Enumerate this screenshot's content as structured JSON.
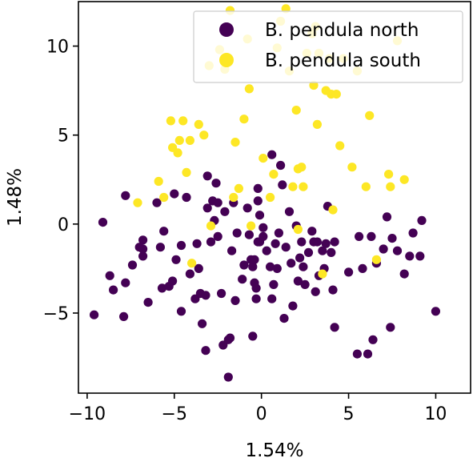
{
  "chart_data": {
    "type": "scatter",
    "xlabel": "1.54%",
    "ylabel": "1.48%",
    "xlim": [
      -10.5,
      12
    ],
    "ylim": [
      -9.5,
      12.5
    ],
    "xticks": [
      -10,
      -5,
      0,
      5,
      10
    ],
    "yticks": [
      -5,
      0,
      5,
      10
    ],
    "grid": false,
    "legend_position": "top-right",
    "series": [
      {
        "name": "B. pendula north",
        "color": "#440154",
        "points": [
          [
            -9.6,
            -5.1
          ],
          [
            -9.1,
            0.1
          ],
          [
            -8.7,
            -2.9
          ],
          [
            -8.5,
            -3.7
          ],
          [
            -7.9,
            -5.2
          ],
          [
            -7.8,
            1.6
          ],
          [
            -7.8,
            -3.3
          ],
          [
            -7.4,
            -2.3
          ],
          [
            -7.0,
            -1.3
          ],
          [
            -6.8,
            -0.9
          ],
          [
            -6.8,
            -1.8
          ],
          [
            -6.5,
            -4.4
          ],
          [
            -6.0,
            1.2
          ],
          [
            -5.8,
            -1.3
          ],
          [
            -5.7,
            -3.6
          ],
          [
            -5.6,
            -0.4
          ],
          [
            -5.3,
            -3.5
          ],
          [
            -5.1,
            -3.2
          ],
          [
            -5.0,
            1.7
          ],
          [
            -4.9,
            -2.0
          ],
          [
            -4.6,
            -1.2
          ],
          [
            -4.6,
            -4.9
          ],
          [
            -4.3,
            1.5
          ],
          [
            -4.1,
            -2.8
          ],
          [
            -3.8,
            -4.2
          ],
          [
            -3.7,
            -1.1
          ],
          [
            -3.6,
            -2.5
          ],
          [
            -3.5,
            -3.9
          ],
          [
            -3.4,
            -5.6
          ],
          [
            -3.2,
            -4.0
          ],
          [
            -3.1,
            2.7
          ],
          [
            -3.1,
            0.9
          ],
          [
            -3.2,
            -7.1
          ],
          [
            -2.9,
            -1.0
          ],
          [
            -2.8,
            1.3
          ],
          [
            -2.7,
            0.2
          ],
          [
            -2.5,
            1.2
          ],
          [
            -2.5,
            -0.7
          ],
          [
            -2.3,
            -3.9
          ],
          [
            -2.2,
            -6.8
          ],
          [
            -2.1,
            0.7
          ],
          [
            -1.9,
            -8.6
          ],
          [
            -1.8,
            -6.4
          ],
          [
            -1.7,
            -1.5
          ],
          [
            -1.6,
            1.2
          ],
          [
            -1.5,
            -4.3
          ],
          [
            -1.4,
            -0.5
          ],
          [
            -1.1,
            -3.1
          ],
          [
            -1.0,
            -2.3
          ],
          [
            -0.8,
            0.9
          ],
          [
            -0.7,
            -0.6
          ],
          [
            -0.6,
            -2.0
          ],
          [
            -0.5,
            -6.3
          ],
          [
            -0.5,
            -2.4
          ],
          [
            -0.4,
            -3.3
          ],
          [
            -0.3,
            -3.6
          ],
          [
            -0.2,
            1.3
          ],
          [
            -0.2,
            -1.0
          ],
          [
            -0.1,
            -1.0
          ],
          [
            0.1,
            -0.2
          ],
          [
            -0.1,
            0.5
          ],
          [
            -0.2,
            2.0
          ],
          [
            -0.4,
            -2.0
          ],
          [
            -0.3,
            -4.2
          ],
          [
            0.1,
            -0.7
          ],
          [
            0.3,
            -1.5
          ],
          [
            0.5,
            -2.4
          ],
          [
            0.6,
            3.9
          ],
          [
            0.6,
            -4.2
          ],
          [
            0.8,
            -1.1
          ],
          [
            0.9,
            -2.5
          ],
          [
            1.0,
            -0.5
          ],
          [
            1.1,
            3.3
          ],
          [
            1.2,
            2.2
          ],
          [
            1.3,
            -5.3
          ],
          [
            1.4,
            -1.3
          ],
          [
            1.6,
            0.7
          ],
          [
            1.7,
            -2.2
          ],
          [
            2.0,
            -0.1
          ],
          [
            2.1,
            -3.2
          ],
          [
            2.2,
            -1.9
          ],
          [
            2.3,
            -1.0
          ],
          [
            2.4,
            -2.4
          ],
          [
            2.5,
            -3.4
          ],
          [
            2.7,
            -1.6
          ],
          [
            2.9,
            -0.4
          ],
          [
            3.0,
            -1.0
          ],
          [
            3.1,
            -3.8
          ],
          [
            3.2,
            -1.0
          ],
          [
            3.3,
            -2.9
          ],
          [
            3.5,
            -1.5
          ],
          [
            3.6,
            -2.5
          ],
          [
            3.7,
            -1.1
          ],
          [
            3.8,
            1.0
          ],
          [
            4.0,
            -1.6
          ],
          [
            4.1,
            -3.7
          ],
          [
            4.2,
            -5.8
          ],
          [
            4.2,
            -1.0
          ],
          [
            5.0,
            -2.7
          ],
          [
            5.5,
            -7.3
          ],
          [
            5.6,
            -0.7
          ],
          [
            5.8,
            -2.5
          ],
          [
            6.1,
            -7.3
          ],
          [
            6.3,
            -0.7
          ],
          [
            6.4,
            -6.5
          ],
          [
            6.6,
            -2.2
          ],
          [
            7.0,
            -1.4
          ],
          [
            7.2,
            0.4
          ],
          [
            7.4,
            -5.8
          ],
          [
            7.5,
            -0.8
          ],
          [
            7.8,
            -1.5
          ],
          [
            8.2,
            -2.8
          ],
          [
            8.5,
            -1.8
          ],
          [
            8.7,
            -0.5
          ],
          [
            9.1,
            -1.8
          ],
          [
            9.2,
            0.2
          ],
          [
            10.0,
            -4.9
          ],
          [
            -1.9,
            -6.5
          ],
          [
            1.8,
            -4.6
          ],
          [
            0.7,
            -3.4
          ],
          [
            -2.6,
            2.3
          ],
          [
            -6.8,
            -1.4
          ]
        ]
      },
      {
        "name": "B. pendula south",
        "color": "#fde725",
        "points": [
          [
            -7.1,
            1.2
          ],
          [
            -5.9,
            2.4
          ],
          [
            -5.6,
            1.5
          ],
          [
            -5.2,
            5.8
          ],
          [
            -5.1,
            4.3
          ],
          [
            -4.8,
            4.0
          ],
          [
            -4.7,
            4.7
          ],
          [
            -4.5,
            5.8
          ],
          [
            -4.3,
            2.9
          ],
          [
            -4.1,
            4.7
          ],
          [
            -3.6,
            5.6
          ],
          [
            -3.3,
            5.0
          ],
          [
            -3.0,
            8.9
          ],
          [
            -2.9,
            -0.1
          ],
          [
            -2.4,
            9.8
          ],
          [
            -2.1,
            8.7
          ],
          [
            -2.0,
            11.0
          ],
          [
            -1.8,
            12.0
          ],
          [
            -1.6,
            1.5
          ],
          [
            -1.5,
            4.6
          ],
          [
            -1.3,
            2.0
          ],
          [
            -1.0,
            5.9
          ],
          [
            -0.7,
            7.6
          ],
          [
            -0.6,
            -0.1
          ],
          [
            0.1,
            3.7
          ],
          [
            0.7,
            2.8
          ],
          [
            0.9,
            9.9
          ],
          [
            1.1,
            11.4
          ],
          [
            1.4,
            12.1
          ],
          [
            1.6,
            8.6
          ],
          [
            1.8,
            2.1
          ],
          [
            2.0,
            6.4
          ],
          [
            2.1,
            3.1
          ],
          [
            2.3,
            3.2
          ],
          [
            2.4,
            2.1
          ],
          [
            2.6,
            9.6
          ],
          [
            2.9,
            10.7
          ],
          [
            3.0,
            7.8
          ],
          [
            3.1,
            11.1
          ],
          [
            3.2,
            5.6
          ],
          [
            3.3,
            9.6
          ],
          [
            3.5,
            -2.8
          ],
          [
            3.7,
            7.5
          ],
          [
            3.9,
            9.3
          ],
          [
            4.0,
            7.3
          ],
          [
            4.1,
            0.8
          ],
          [
            4.3,
            7.3
          ],
          [
            4.5,
            4.4
          ],
          [
            4.7,
            9.3
          ],
          [
            5.2,
            3.2
          ],
          [
            5.5,
            8.6
          ],
          [
            6.0,
            2.1
          ],
          [
            6.2,
            6.1
          ],
          [
            6.6,
            -2.0
          ],
          [
            7.3,
            2.8
          ],
          [
            7.4,
            2.1
          ],
          [
            7.8,
            10.3
          ],
          [
            8.2,
            2.5
          ],
          [
            -4.0,
            -2.2
          ],
          [
            2.1,
            -0.3
          ],
          [
            0.5,
            1.5
          ],
          [
            -0.8,
            10.4
          ]
        ]
      }
    ]
  }
}
